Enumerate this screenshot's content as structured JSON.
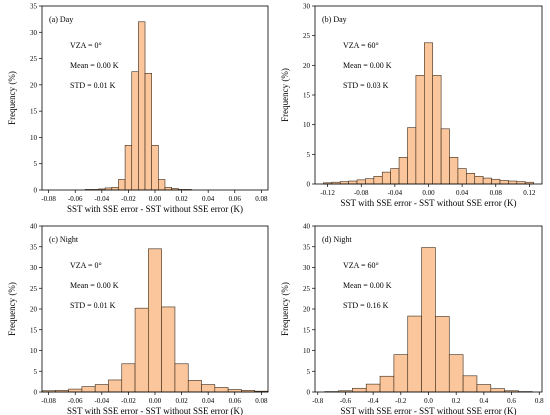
{
  "chart_data": [
    {
      "type": "bar",
      "panel_label": "(a) Day",
      "annotations": [
        "VZA = 0°",
        "Mean = 0.00 K",
        "STD = 0.01 K"
      ],
      "xlabel": "SST with SSE error - SST without SSE error (K)",
      "ylabel": "Frequency (%)",
      "xlim": [
        -0.085,
        0.085
      ],
      "ylim": [
        0,
        35
      ],
      "xticks": [
        -0.08,
        -0.06,
        -0.04,
        -0.02,
        0.0,
        0.02,
        0.04,
        0.06,
        0.08
      ],
      "xtick_labels": [
        "-0.08",
        "-0.06",
        "-0.04",
        "-0.02",
        "0.00",
        "0.02",
        "0.04",
        "0.06",
        "0.08"
      ],
      "yticks": [
        0,
        5,
        10,
        15,
        20,
        25,
        30,
        35
      ],
      "bin_width": 0.005,
      "x": [
        -0.08,
        -0.075,
        -0.07,
        -0.065,
        -0.06,
        -0.055,
        -0.05,
        -0.045,
        -0.04,
        -0.035,
        -0.03,
        -0.025,
        -0.02,
        -0.015,
        -0.01,
        -0.005,
        0.0,
        0.005,
        0.01,
        0.015,
        0.02,
        0.025,
        0.03,
        0.035,
        0.04,
        0.045,
        0.05,
        0.055,
        0.06,
        0.065,
        0.07,
        0.075,
        0.08
      ],
      "values": [
        0.0,
        0.0,
        0.0,
        0.0,
        0.0,
        0.0,
        0.1,
        0.1,
        0.2,
        0.4,
        0.5,
        2.0,
        8.5,
        22.5,
        32.0,
        22.2,
        8.5,
        2.0,
        0.5,
        0.3,
        0.1,
        0.1,
        0.0,
        0.0,
        0.0,
        0.0,
        0.0,
        0.0,
        0.0,
        0.0,
        0.0,
        0.0,
        0.0
      ]
    },
    {
      "type": "bar",
      "panel_label": "(b) Day",
      "annotations": [
        "VZA = 60°",
        "Mean = 0.00 K",
        "STD = 0.03 K"
      ],
      "xlabel": "SST with SSE error - SST without SSE error (K)",
      "ylabel": "Frequency (%)",
      "xlim": [
        -0.135,
        0.135
      ],
      "ylim": [
        0,
        30
      ],
      "xticks": [
        -0.12,
        -0.08,
        -0.04,
        0.0,
        0.04,
        0.08,
        0.12
      ],
      "xtick_labels": [
        "-0.12",
        "-0.08",
        "-0.04",
        "0.00",
        "0.04",
        "0.08",
        "0.12"
      ],
      "yticks": [
        0,
        5,
        10,
        15,
        20,
        25,
        30
      ],
      "bin_width": 0.01,
      "x": [
        -0.12,
        -0.11,
        -0.1,
        -0.09,
        -0.08,
        -0.07,
        -0.06,
        -0.05,
        -0.04,
        -0.03,
        -0.02,
        -0.01,
        0.0,
        0.01,
        0.02,
        0.03,
        0.04,
        0.05,
        0.06,
        0.07,
        0.08,
        0.09,
        0.1,
        0.11,
        0.12
      ],
      "values": [
        0.2,
        0.3,
        0.4,
        0.5,
        0.7,
        0.9,
        1.3,
        2.0,
        2.6,
        4.5,
        9.5,
        18.3,
        23.8,
        18.3,
        9.3,
        4.5,
        2.6,
        1.8,
        1.3,
        1.0,
        0.8,
        0.6,
        0.5,
        0.4,
        0.3
      ]
    },
    {
      "type": "bar",
      "panel_label": "(c) Night",
      "annotations": [
        "VZA = 0°",
        "Mean = 0.00 K",
        "STD = 0.01 K"
      ],
      "xlabel": "SST with SSE error - SST without SSE error (K)",
      "ylabel": "Frequency (%)",
      "xlim": [
        -0.085,
        0.085
      ],
      "ylim": [
        0,
        40
      ],
      "xticks": [
        -0.08,
        -0.06,
        -0.04,
        -0.02,
        0.0,
        0.02,
        0.04,
        0.06,
        0.08
      ],
      "xtick_labels": [
        "-0.08",
        "-0.06",
        "-0.04",
        "-0.02",
        "0.00",
        "0.02",
        "0.04",
        "0.06",
        "0.08"
      ],
      "yticks": [
        0,
        5,
        10,
        15,
        20,
        25,
        30,
        35,
        40
      ],
      "bin_width": 0.01,
      "x": [
        -0.08,
        -0.07,
        -0.06,
        -0.05,
        -0.04,
        -0.03,
        -0.02,
        -0.01,
        0.0,
        0.01,
        0.02,
        0.03,
        0.04,
        0.05,
        0.06,
        0.07,
        0.08
      ],
      "values": [
        0.3,
        0.4,
        0.7,
        1.3,
        1.8,
        2.9,
        6.8,
        20.2,
        34.5,
        20.5,
        6.8,
        2.8,
        1.8,
        1.1,
        0.6,
        0.4,
        0.2
      ]
    },
    {
      "type": "bar",
      "panel_label": "(d) Night",
      "annotations": [
        "VZA = 60°",
        "Mean = 0.00 K",
        "STD = 0.16 K"
      ],
      "xlabel": "SST with SSE error - SST without SSE error (K)",
      "ylabel": "Frequency (%)",
      "xlim": [
        -0.82,
        0.82
      ],
      "ylim": [
        0,
        40
      ],
      "xticks": [
        -0.8,
        -0.6,
        -0.4,
        -0.2,
        0.0,
        0.2,
        0.4,
        0.6,
        0.8
      ],
      "xtick_labels": [
        "-0.8",
        "-0.6",
        "-0.4",
        "-0.2",
        "0.0",
        "0.2",
        "0.4",
        "0.6",
        "0.8"
      ],
      "yticks": [
        0,
        5,
        10,
        15,
        20,
        25,
        30,
        35,
        40
      ],
      "bin_width": 0.1,
      "x": [
        -0.7,
        -0.6,
        -0.5,
        -0.4,
        -0.3,
        -0.2,
        -0.1,
        0.0,
        0.1,
        0.2,
        0.3,
        0.4,
        0.5,
        0.6,
        0.7
      ],
      "values": [
        0.1,
        0.3,
        0.9,
        1.9,
        3.8,
        9.0,
        18.3,
        34.8,
        18.2,
        9.0,
        3.9,
        1.8,
        0.8,
        0.3,
        0.1
      ]
    }
  ],
  "colors": {
    "bar_fill": "#fbc69b",
    "bar_stroke": "#3a2a1a",
    "axis": "#000000"
  }
}
